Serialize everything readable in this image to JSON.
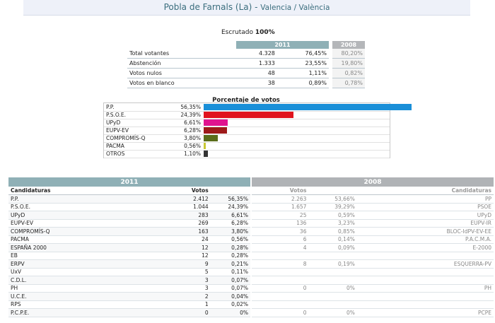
{
  "header": {
    "municipality": "Pobla de Farnals (La)",
    "separator": " - ",
    "province": "Valencia / València"
  },
  "escrutado": {
    "label": "Escrutado",
    "value": "100%"
  },
  "summary": {
    "year_current": "2011",
    "year_previous": "2008",
    "rows": [
      {
        "label": "Total votantes",
        "votes": "4.328",
        "pct": "76,45%",
        "prev": "80,20%"
      },
      {
        "label": "Abstención",
        "votes": "1.333",
        "pct": "23,55%",
        "prev": "19,80%"
      },
      {
        "label": "Votos nulos",
        "votes": "48",
        "pct": "1,11%",
        "prev": "0,82%"
      },
      {
        "label": "Votos en blanco",
        "votes": "38",
        "pct": "0,89%",
        "prev": "0,78%"
      }
    ]
  },
  "chart_data": {
    "type": "bar",
    "title": "Porcentaje de votos",
    "categories": [
      "P.P.",
      "P.S.O.E.",
      "UPyD",
      "EUPV-EV",
      "COMPROMÍS-Q",
      "PACMA",
      "OTROS"
    ],
    "labels": [
      "56,35%",
      "24,39%",
      "6,61%",
      "6,28%",
      "3,80%",
      "0,56%",
      "1,10%"
    ],
    "values": [
      56.35,
      24.39,
      6.61,
      6.28,
      3.8,
      0.56,
      1.1
    ],
    "colors": [
      "#1a8fd8",
      "#e0141e",
      "#e0138f",
      "#9e1a1a",
      "#5a6d1a",
      "#c8c832",
      "#333333"
    ],
    "xlim": [
      0,
      100
    ]
  },
  "results_2011": {
    "year": "2011",
    "col_candidatura": "Candidaturas",
    "col_votos": "Votos",
    "rows": [
      {
        "name": "P.P.",
        "votes": "2.412",
        "pct": "56,35%"
      },
      {
        "name": "P.S.O.E.",
        "votes": "1.044",
        "pct": "24,39%"
      },
      {
        "name": "UPyD",
        "votes": "283",
        "pct": "6,61%"
      },
      {
        "name": "EUPV-EV",
        "votes": "269",
        "pct": "6,28%"
      },
      {
        "name": "COMPROMÍS-Q",
        "votes": "163",
        "pct": "3,80%"
      },
      {
        "name": "PACMA",
        "votes": "24",
        "pct": "0,56%"
      },
      {
        "name": "ESPAÑA 2000",
        "votes": "12",
        "pct": "0,28%"
      },
      {
        "name": "EB",
        "votes": "12",
        "pct": "0,28%"
      },
      {
        "name": "ERPV",
        "votes": "9",
        "pct": "0,21%"
      },
      {
        "name": "UxV",
        "votes": "5",
        "pct": "0,11%"
      },
      {
        "name": "C.D.L.",
        "votes": "3",
        "pct": "0,07%"
      },
      {
        "name": "PH",
        "votes": "3",
        "pct": "0,07%"
      },
      {
        "name": "U.C.E.",
        "votes": "2",
        "pct": "0,04%"
      },
      {
        "name": "RPS",
        "votes": "1",
        "pct": "0,02%"
      },
      {
        "name": "P.C.P.E.",
        "votes": "0",
        "pct": "0%"
      }
    ]
  },
  "results_2008": {
    "year": "2008",
    "col_votos": "Votos",
    "col_candidatura": "Candidaturas",
    "rows": [
      {
        "votes": "2.263",
        "pct": "53,66%",
        "name": "PP"
      },
      {
        "votes": "1.657",
        "pct": "39,29%",
        "name": "PSOE"
      },
      {
        "votes": "25",
        "pct": "0,59%",
        "name": "UPyD"
      },
      {
        "votes": "136",
        "pct": "3,23%",
        "name": "EUPV-IR"
      },
      {
        "votes": "36",
        "pct": "0,85%",
        "name": "BLOC-IdPV-EV-EE"
      },
      {
        "votes": "6",
        "pct": "0,14%",
        "name": "P.A.C.M.A."
      },
      {
        "votes": "4",
        "pct": "0,09%",
        "name": "E-2000"
      },
      {
        "votes": "",
        "pct": "",
        "name": ""
      },
      {
        "votes": "8",
        "pct": "0,19%",
        "name": "ESQUERRA-PV"
      },
      {
        "votes": "",
        "pct": "",
        "name": ""
      },
      {
        "votes": "",
        "pct": "",
        "name": ""
      },
      {
        "votes": "0",
        "pct": "0%",
        "name": "PH"
      },
      {
        "votes": "",
        "pct": "",
        "name": ""
      },
      {
        "votes": "",
        "pct": "",
        "name": ""
      },
      {
        "votes": "0",
        "pct": "0%",
        "name": "PCPE"
      }
    ]
  }
}
